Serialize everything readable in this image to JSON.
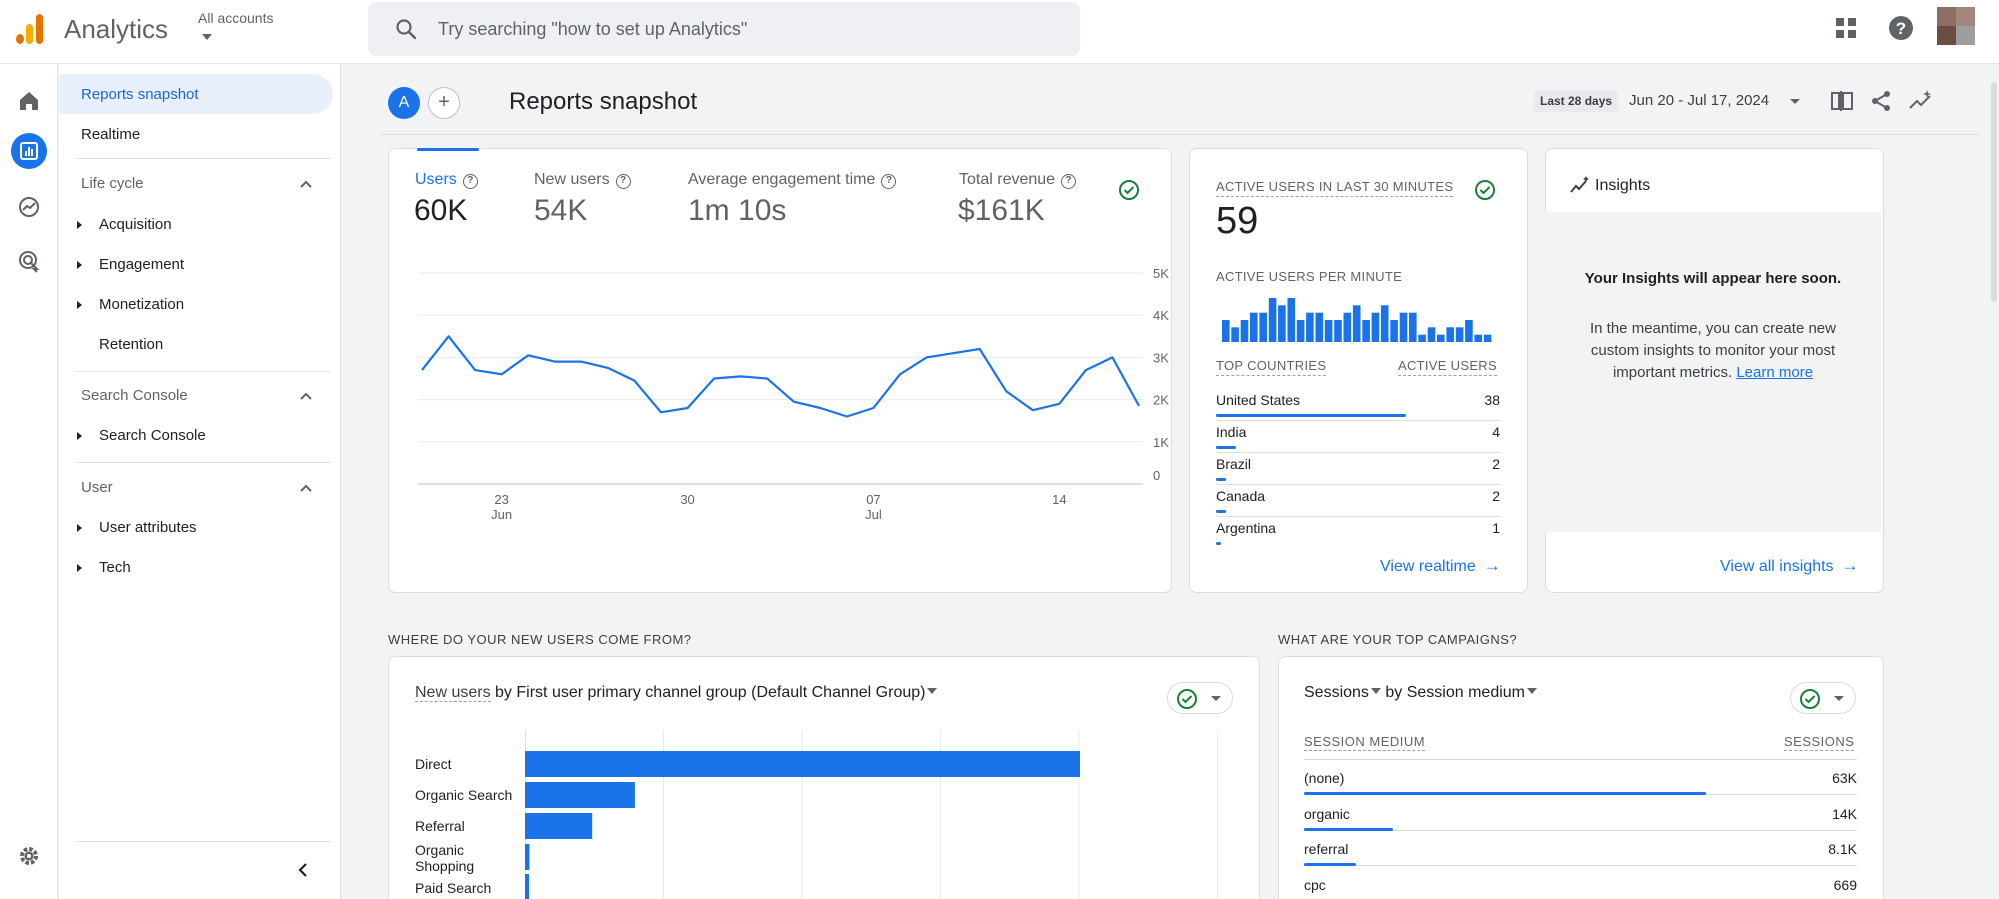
{
  "app": {
    "title": "Analytics",
    "account_label": "All accounts"
  },
  "search": {
    "placeholder": "Try searching \"how to set up Analytics\""
  },
  "nav": {
    "active": "Reports snapshot",
    "realtime": "Realtime",
    "sections": [
      {
        "title": "Life cycle",
        "items": [
          "Acquisition",
          "Engagement",
          "Monetization",
          "Retention"
        ]
      },
      {
        "title": "Search Console",
        "items": [
          "Search Console"
        ]
      },
      {
        "title": "User",
        "items": [
          "User attributes",
          "Tech"
        ]
      }
    ]
  },
  "header": {
    "avatar_letter": "A",
    "add_label": "+",
    "title": "Reports snapshot",
    "date_chip": "Last 28 days",
    "date_range": "Jun 20 - Jul 17, 2024"
  },
  "metrics": [
    {
      "label": "Users",
      "value": "60K"
    },
    {
      "label": "New users",
      "value": "54K"
    },
    {
      "label": "Average engagement time",
      "value": "1m 10s"
    },
    {
      "label": "Total revenue",
      "value": "$161K"
    }
  ],
  "chart_data": {
    "type": "line",
    "series": [
      {
        "values": [
          2700,
          3500,
          2700,
          2600,
          3050,
          2900,
          2900,
          2750,
          2450,
          1700,
          1800,
          2500,
          2550,
          2500,
          1950,
          1800,
          1600,
          1800,
          2600,
          3000,
          3100,
          3200,
          2200,
          1750,
          1900,
          2700,
          3000,
          1850
        ]
      }
    ],
    "ylim": [
      0,
      5000
    ],
    "y_ticks": [
      "5K",
      "4K",
      "3K",
      "2K",
      "1K",
      "0"
    ],
    "x_ticks": [
      {
        "label": "23",
        "sub": "Jun"
      },
      {
        "label": "30",
        "sub": ""
      },
      {
        "label": "07",
        "sub": "Jul"
      },
      {
        "label": "14",
        "sub": ""
      }
    ],
    "grid": true
  },
  "realtime": {
    "heading": "ACTIVE USERS IN LAST 30 MINUTES",
    "value": "59",
    "per_minute_label": "ACTIVE USERS PER MINUTE",
    "per_minute": [
      3,
      2,
      3,
      4,
      4,
      6,
      5,
      6,
      3,
      4,
      4,
      3,
      3,
      4,
      5,
      3,
      4,
      5,
      3,
      4,
      4,
      1,
      2,
      1,
      2,
      2,
      3,
      1,
      1
    ],
    "countries_header": "TOP COUNTRIES",
    "users_header": "ACTIVE USERS",
    "countries": [
      {
        "name": "United States",
        "value": "38",
        "share": 1.0
      },
      {
        "name": "India",
        "value": "4",
        "share": 0.105
      },
      {
        "name": "Brazil",
        "value": "2",
        "share": 0.053
      },
      {
        "name": "Canada",
        "value": "2",
        "share": 0.053
      },
      {
        "name": "Argentina",
        "value": "1",
        "share": 0.026
      }
    ],
    "link": "View realtime"
  },
  "insights": {
    "title": "Insights",
    "heading": "Your Insights will appear here soon.",
    "text": "In the meantime, you can create new custom insights to monitor your most important metrics.",
    "learn_more": "Learn more",
    "link": "View all insights"
  },
  "new_users": {
    "section_title": "WHERE DO YOUR NEW USERS COME FROM?",
    "metric": "New users",
    "by": "by",
    "dimension": "First user primary channel group (Default Channel Group)",
    "bars": [
      {
        "label": "Direct",
        "value": 1.0
      },
      {
        "label": "Organic Search",
        "value": 0.198
      },
      {
        "label": "Referral",
        "value": 0.121
      },
      {
        "label": "Organic Shopping",
        "value": 0.008
      },
      {
        "label": "Paid Search",
        "value": 0.006
      }
    ]
  },
  "campaigns": {
    "section_title": "WHAT ARE YOUR TOP CAMPAIGNS?",
    "metric": "Sessions",
    "by": "by Session medium",
    "col1": "SESSION MEDIUM",
    "col2": "SESSIONS",
    "rows": [
      {
        "name": "(none)",
        "value": "63K",
        "share": 1.0
      },
      {
        "name": "organic",
        "value": "14K",
        "share": 0.222
      },
      {
        "name": "referral",
        "value": "8.1K",
        "share": 0.129
      },
      {
        "name": "cpc",
        "value": "669",
        "share": 0.011
      }
    ]
  },
  "colors": {
    "accent": "#1a73e8",
    "logo_orange": "#f9ab00",
    "logo_dark": "#e37400",
    "success": "#188038"
  }
}
